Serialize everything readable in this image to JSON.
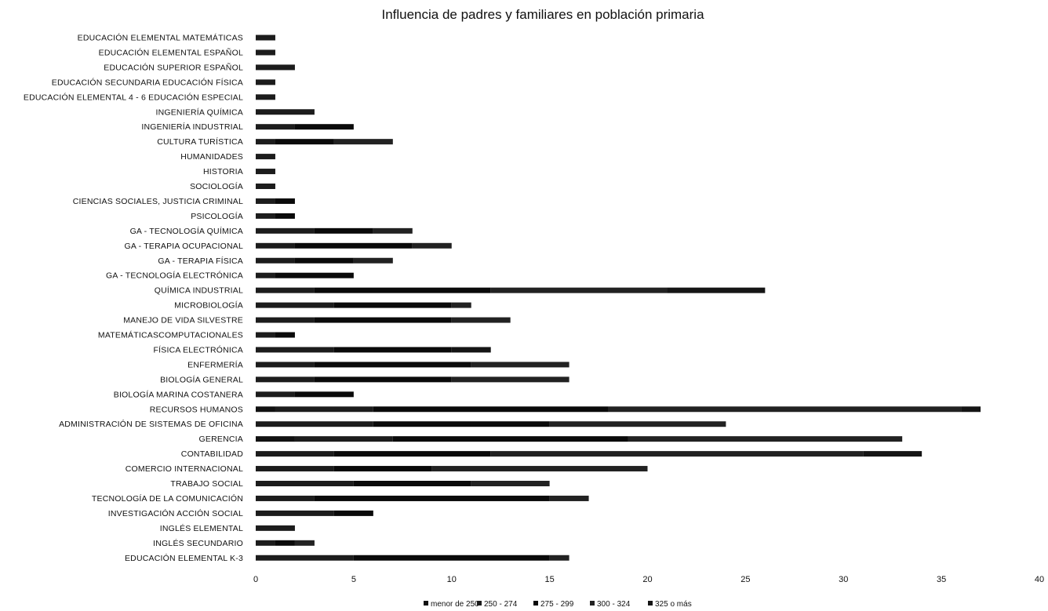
{
  "chart_data": {
    "type": "bar",
    "orientation": "horizontal",
    "stacked": true,
    "title": "Influencia de padres y familiares en población primaria",
    "xlabel": "",
    "ylabel": "",
    "xlim": [
      0,
      40
    ],
    "x_ticks": [
      "0",
      "5",
      "10",
      "15",
      "20",
      "25",
      "30",
      "35",
      "40"
    ],
    "grid": false,
    "legend_position": "bottom",
    "categories": [
      "EDUCACIÓN ELEMENTAL MATEMÁTICAS",
      "EDUCACIÓN ELEMENTAL ESPAÑOL",
      "EDUCACIÓN SUPERIOR ESPAÑOL",
      "EDUCACIÓN SECUNDARIA EDUCACIÓN FÍSICA",
      "EDUCACIÓN ELEMENTAL 4 - 6 EDUCACIÓN ESPECIAL",
      "INGENIERÍA QUÍMICA",
      "INGENIERÍA INDUSTRIAL",
      "CULTURA TURÍSTICA",
      "HUMANIDADES",
      "HISTORIA",
      "SOCIOLOGÍA",
      "CIENCIAS SOCIALES, JUSTICIA CRIMINAL",
      "PSICOLOGÍA",
      "GA - TECNOLOGÍA QUÍMICA",
      "GA - TERAPIA OCUPACIONAL",
      "GA - TERAPIA FÍSICA",
      "GA - TECNOLOGÍA ELECTRÓNICA",
      "QUÍMICA INDUSTRIAL",
      "MICROBIOLOGÍA",
      "MANEJO DE VIDA SILVESTRE",
      "MATEMÁTICASCOMPUTACIONALES",
      "FÍSICA ELECTRÓNICA",
      "ENFERMERÍA",
      "BIOLOGÍA GENERAL",
      "BIOLOGÍA MARINA COSTANERA",
      "RECURSOS HUMANOS",
      "ADMINISTRACIÓN DE SISTEMAS DE OFICINA",
      "GERENCIA",
      "CONTABILIDAD",
      "COMERCIO INTERNACIONAL",
      "TRABAJO SOCIAL",
      "TECNOLOGÍA DE LA COMUNICACIÓN",
      "INVESTIGACIÓN ACCIÓN SOCIAL",
      "INGLÉS ELEMENTAL",
      "INGLÉS SECUNDARIO",
      "EDUCACIÓN ELEMENTAL K-3"
    ],
    "series": [
      {
        "name": "menor de 250",
        "color": "#111111",
        "values": [
          0,
          0,
          0,
          0,
          0,
          0,
          0,
          0,
          0,
          0,
          0,
          0,
          0,
          0,
          0,
          0,
          0,
          0,
          0,
          0,
          0,
          0,
          0,
          0,
          0,
          1,
          0,
          2,
          0,
          0,
          0,
          0,
          0,
          0,
          0,
          0
        ]
      },
      {
        "name": "250 - 274",
        "color": "#1c1c1c",
        "values": [
          1,
          1,
          2,
          1,
          1,
          3,
          2,
          1,
          1,
          1,
          1,
          1,
          1,
          3,
          2,
          2,
          1,
          3,
          4,
          3,
          1,
          4,
          3,
          3,
          2,
          5,
          6,
          5,
          4,
          4,
          5,
          3,
          4,
          2,
          1,
          5
        ]
      },
      {
        "name": "275 - 299",
        "color": "#0a0a0a",
        "values": [
          0,
          0,
          0,
          0,
          0,
          0,
          3,
          3,
          0,
          0,
          0,
          1,
          1,
          3,
          6,
          3,
          4,
          9,
          6,
          7,
          1,
          6,
          8,
          7,
          3,
          12,
          9,
          12,
          8,
          5,
          6,
          12,
          2,
          0,
          1,
          10
        ]
      },
      {
        "name": "300 - 324",
        "color": "#222222",
        "values": [
          0,
          0,
          0,
          0,
          0,
          0,
          0,
          3,
          0,
          0,
          0,
          0,
          0,
          2,
          2,
          2,
          0,
          9,
          1,
          3,
          0,
          0,
          5,
          6,
          0,
          18,
          9,
          14,
          19,
          11,
          4,
          2,
          0,
          0,
          1,
          1
        ]
      },
      {
        "name": "325 o más",
        "color": "#151515",
        "values": [
          0,
          0,
          0,
          0,
          0,
          0,
          0,
          0,
          0,
          0,
          0,
          0,
          0,
          0,
          0,
          0,
          0,
          5,
          0,
          0,
          0,
          2,
          0,
          0,
          0,
          1,
          0,
          0,
          3,
          0,
          0,
          0,
          0,
          0,
          0,
          0
        ]
      }
    ]
  }
}
